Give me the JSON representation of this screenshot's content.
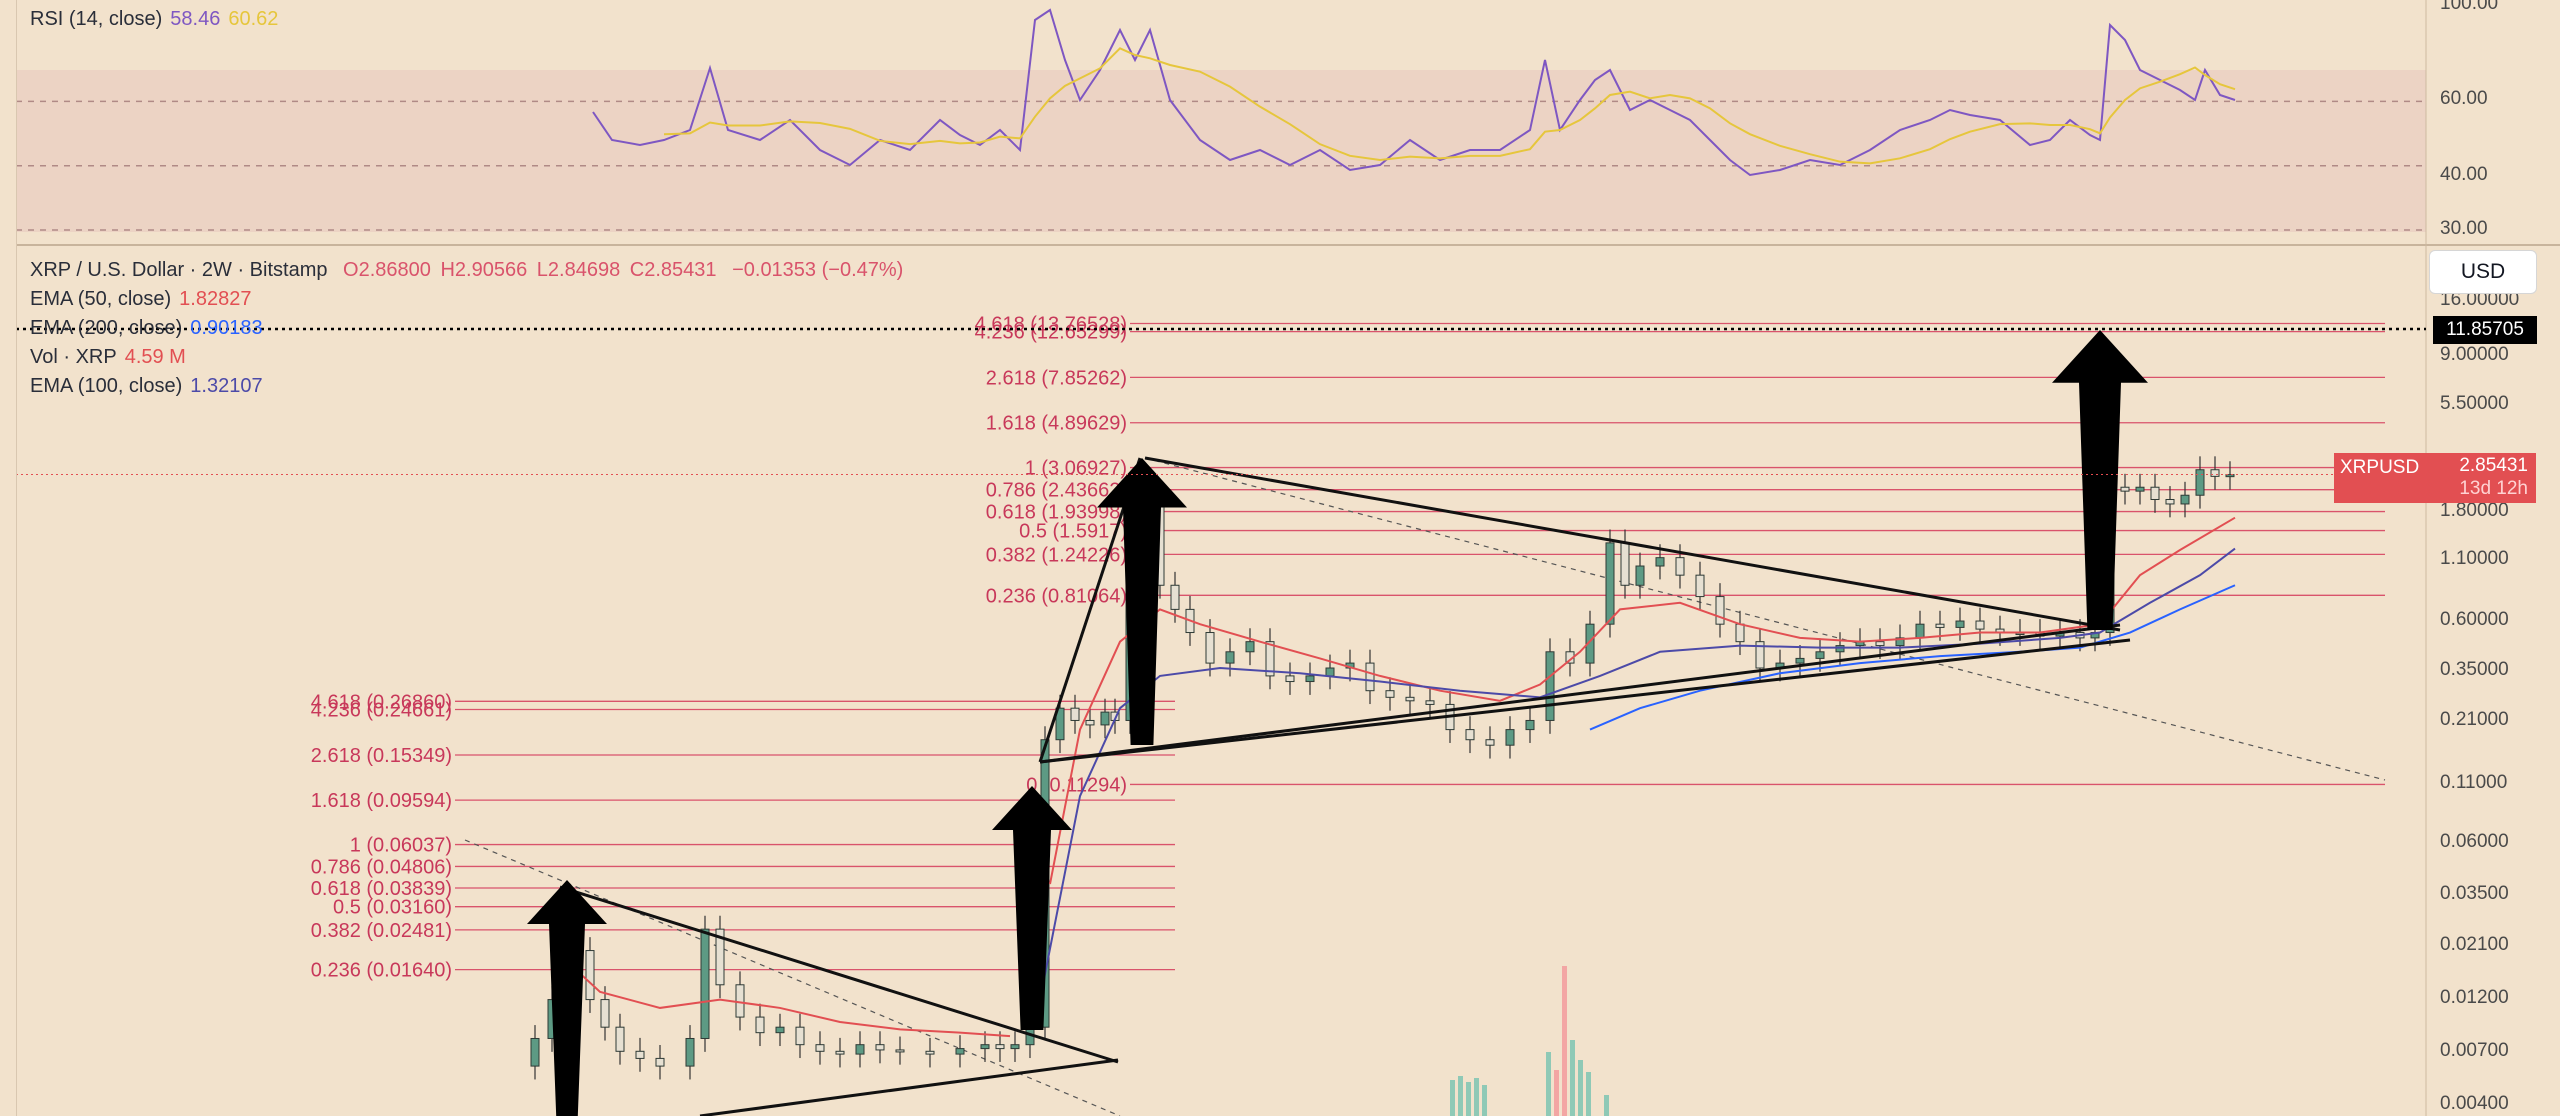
{
  "rsi_legend": {
    "name": "RSI (14, close)",
    "value1": "58.46",
    "value2": "60.62"
  },
  "symbol_legend": {
    "title": "XRP / U.S. Dollar · 2W · Bitstamp",
    "open": "O2.86800",
    "high": "H2.90566",
    "low": "L2.84698",
    "close": "C2.85431",
    "change": "−0.01353 (−0.47%)"
  },
  "indicators": [
    {
      "label": "EMA (50, close)",
      "value": "1.82827",
      "color": "#e24f52"
    },
    {
      "label": "EMA (200, close)",
      "value": "0.90183",
      "color": "#2962ff"
    },
    {
      "label": "Vol · XRP",
      "value": "4.59 M",
      "color": "#e24f52"
    },
    {
      "label": "EMA (100, close)",
      "value": "1.32107",
      "color": "#4c4aa8"
    }
  ],
  "currency_button": "USD",
  "crosshair_price": "11.85705",
  "last_price_tag": {
    "symbol": "XRPUSD",
    "price": "2.85431",
    "countdown": "13d 12h"
  },
  "rsi_axis": [
    "100.00",
    "60.00",
    "40.00",
    "30.00"
  ],
  "price_axis": [
    "16.00000",
    "9.00000",
    "5.50000",
    "1.80000",
    "1.10000",
    "0.60000",
    "0.35000",
    "0.21000",
    "0.11000",
    "0.06000",
    "0.03500",
    "0.02100",
    "0.01200",
    "0.00700",
    "0.00400"
  ],
  "colors": {
    "background": "#f2e2cc",
    "rsi_band": "#ecd3c4",
    "fib_line": "#d9536b",
    "fib_text": "#c8385a",
    "candle_up": "#5d9a84",
    "candle_down": "#2e3a35",
    "ema50": "#e24f52",
    "ema200": "#2962ff",
    "ema100": "#4c4aa8",
    "rsi_line": "#7e57c2",
    "rsi_ma": "#e6c63c"
  },
  "chart_data": {
    "type": "candlestick",
    "title": "XRP / U.S. Dollar · 2W · Bitstamp",
    "scale": "log",
    "ylim": [
      0.0035,
      16
    ],
    "fib_upper": [
      {
        "label": "4.618 (13.76528)",
        "price": 13.76528
      },
      {
        "label": "4.236 (12.65299)",
        "price": 12.65299
      },
      {
        "label": "2.618 (7.85262)",
        "price": 7.85262
      },
      {
        "label": "1.618 (4.89629)",
        "price": 4.89629
      },
      {
        "label": "1 (3.06927)",
        "price": 3.06927
      },
      {
        "label": "0.786 (2.43662)",
        "price": 2.43662
      },
      {
        "label": "0.618 (1.93998)",
        "price": 1.93998
      },
      {
        "label": "0.5 (1.5917)",
        "price": 1.5917
      },
      {
        "label": "0.382 (1.24226)",
        "price": 1.24226
      },
      {
        "label": "0.236 (0.81064)",
        "price": 0.81064
      },
      {
        "label": "0 (0.11294)",
        "price": 0.11294
      }
    ],
    "fib_lower": [
      {
        "label": "4.618 (0.26860)",
        "price": 0.2686
      },
      {
        "label": "4.236 (0.24661)",
        "price": 0.24661
      },
      {
        "label": "2.618 (0.15349)",
        "price": 0.15349
      },
      {
        "label": "1.618 (0.09594)",
        "price": 0.09594
      },
      {
        "label": "1 (0.06037)",
        "price": 0.06037
      },
      {
        "label": "0.786 (0.04806)",
        "price": 0.04806
      },
      {
        "label": "0.618 (0.03839)",
        "price": 0.03839
      },
      {
        "label": "0.5 (0.03160)",
        "price": 0.0316
      },
      {
        "label": "0.382 (0.02481)",
        "price": 0.02481
      },
      {
        "label": "0.236 (0.01640)",
        "price": 0.0164
      }
    ],
    "rsi": {
      "ylim": [
        28,
        100
      ],
      "overbought": 70,
      "middle": 50,
      "oversold": 30
    }
  }
}
